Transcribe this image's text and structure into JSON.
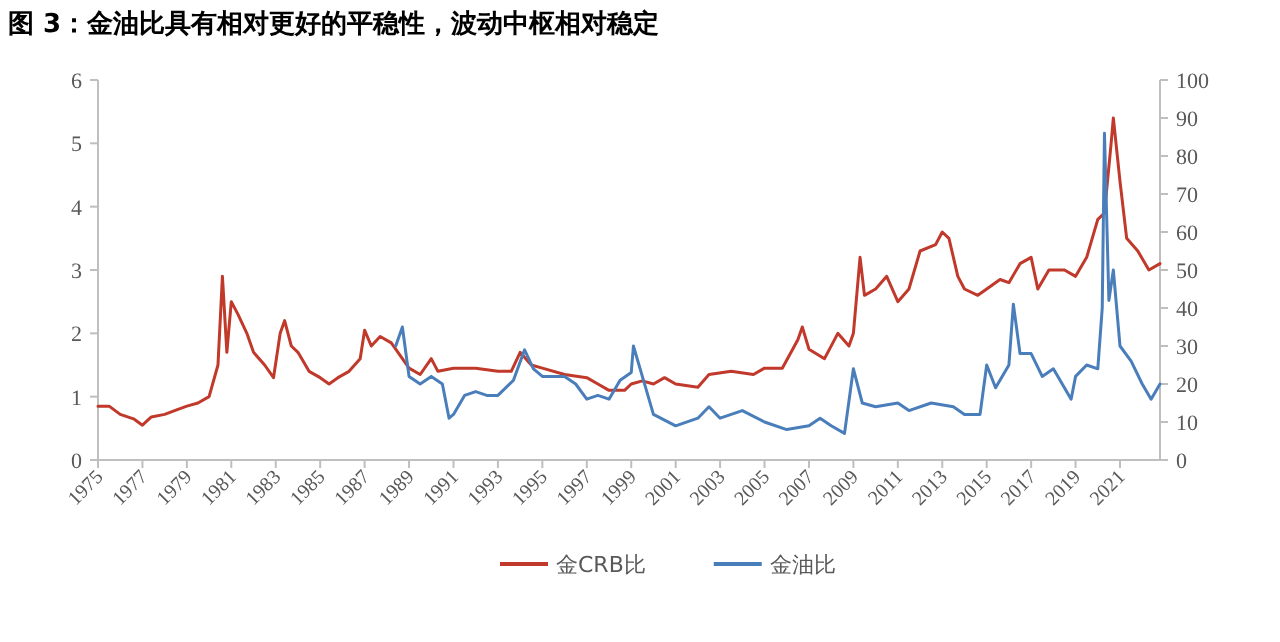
{
  "chart_data": {
    "type": "line",
    "title": "图 3：金油比具有相对更好的平稳性，波动中枢相对稳定",
    "legend": "bottom",
    "grid": false,
    "marker": "none",
    "line_style": "solid",
    "xlim": [
      1975,
      2022.8
    ],
    "xticks": [
      1975,
      1977,
      1979,
      1981,
      1983,
      1985,
      1987,
      1989,
      1991,
      1993,
      1995,
      1997,
      1999,
      2001,
      2003,
      2005,
      2007,
      2009,
      2011,
      2013,
      2015,
      2017,
      2019,
      2021
    ],
    "ylim": [
      0,
      6
    ],
    "yticks": [
      0,
      1,
      2,
      3,
      4,
      5,
      6
    ],
    "y2lim": [
      0,
      100
    ],
    "y2ticks": [
      0,
      10,
      20,
      30,
      40,
      50,
      60,
      70,
      80,
      90,
      100
    ],
    "series": [
      {
        "name": "金CRB比",
        "color": "#c0392b",
        "x": [
          1975.0,
          1975.5,
          1976.0,
          1976.6,
          1977.0,
          1977.4,
          1978.0,
          1978.6,
          1979.0,
          1979.5,
          1980.0,
          1980.4,
          1980.6,
          1980.8,
          1981.0,
          1981.3,
          1981.7,
          1982.0,
          1982.5,
          1982.9,
          1983.2,
          1983.4,
          1983.7,
          1984.0,
          1984.5,
          1985.0,
          1985.4,
          1985.8,
          1986.3,
          1986.8,
          1987.0,
          1987.3,
          1987.7,
          1988.2,
          1988.7,
          1989.0,
          1989.5,
          1990.0,
          1990.3,
          1991.0,
          1992.0,
          1993.0,
          1993.6,
          1994.0,
          1994.5,
          1995.0,
          1996.0,
          1997.0,
          1997.5,
          1998.0,
          1998.7,
          1999.0,
          1999.5,
          2000.0,
          2000.5,
          2001.0,
          2002.0,
          2002.5,
          2003.5,
          2004.5,
          2005.0,
          2005.8,
          2006.5,
          2006.7,
          2007.0,
          2007.7,
          2008.3,
          2008.8,
          2009.0,
          2009.3,
          2009.5,
          2010.0,
          2010.5,
          2011.0,
          2011.5,
          2012.0,
          2012.7,
          2013.0,
          2013.3,
          2013.7,
          2014.0,
          2014.6,
          2015.0,
          2015.6,
          2016.0,
          2016.5,
          2017.0,
          2017.3,
          2017.8,
          2018.5,
          2019.0,
          2019.5,
          2020.0,
          2020.3,
          2020.6,
          2020.7,
          2021.0,
          2021.3,
          2021.8,
          2022.3,
          2022.8
        ],
        "values": [
          0.85,
          0.85,
          0.72,
          0.65,
          0.55,
          0.68,
          0.72,
          0.8,
          0.85,
          0.9,
          1.0,
          1.5,
          2.9,
          1.7,
          2.5,
          2.3,
          2.0,
          1.7,
          1.5,
          1.3,
          2.0,
          2.2,
          1.8,
          1.7,
          1.4,
          1.3,
          1.2,
          1.3,
          1.4,
          1.6,
          2.05,
          1.8,
          1.95,
          1.85,
          1.6,
          1.45,
          1.35,
          1.6,
          1.4,
          1.45,
          1.45,
          1.4,
          1.4,
          1.7,
          1.5,
          1.45,
          1.35,
          1.3,
          1.2,
          1.1,
          1.1,
          1.2,
          1.25,
          1.2,
          1.3,
          1.2,
          1.15,
          1.35,
          1.4,
          1.35,
          1.45,
          1.45,
          1.9,
          2.1,
          1.75,
          1.6,
          2.0,
          1.8,
          2.0,
          3.2,
          2.6,
          2.7,
          2.9,
          2.5,
          2.7,
          3.3,
          3.4,
          3.6,
          3.5,
          2.9,
          2.7,
          2.6,
          2.7,
          2.85,
          2.8,
          3.1,
          3.2,
          2.7,
          3.0,
          3.0,
          2.9,
          3.2,
          3.8,
          3.9,
          5.0,
          5.4,
          4.4,
          3.5,
          3.3,
          3.0,
          3.1
        ]
      },
      {
        "name": "金油比",
        "color": "#4a7ebb",
        "axis": "y2",
        "x": [
          1988.4,
          1988.7,
          1989.0,
          1989.5,
          1990.0,
          1990.5,
          1990.8,
          1991.0,
          1991.5,
          1992.0,
          1992.5,
          1993.0,
          1993.7,
          1994.2,
          1994.6,
          1995.0,
          1996.0,
          1996.5,
          1997.0,
          1997.5,
          1998.0,
          1998.5,
          1999.0,
          1999.1,
          1999.5,
          2000.0,
          2001.0,
          2002.0,
          2002.5,
          2003.0,
          2004.0,
          2005.0,
          2006.0,
          2007.0,
          2007.5,
          2008.0,
          2008.6,
          2009.0,
          2009.4,
          2010.0,
          2011.0,
          2011.5,
          2012.5,
          2013.5,
          2014.0,
          2014.7,
          2015.0,
          2015.4,
          2016.0,
          2016.2,
          2016.5,
          2017.0,
          2017.5,
          2018.0,
          2018.8,
          2019.0,
          2019.5,
          2020.0,
          2020.2,
          2020.3,
          2020.5,
          2020.7,
          2021.0,
          2021.5,
          2022.0,
          2022.4,
          2022.8
        ],
        "values": [
          30,
          35,
          22,
          20,
          22,
          20,
          11,
          12,
          17,
          18,
          17,
          17,
          21,
          29,
          24,
          22,
          22,
          20,
          16,
          17,
          16,
          21,
          23,
          30,
          22,
          12,
          9,
          11,
          14,
          11,
          13,
          10,
          8,
          9,
          11,
          9,
          7,
          24,
          15,
          14,
          15,
          13,
          15,
          14,
          12,
          12,
          25,
          19,
          25,
          41,
          28,
          28,
          22,
          24,
          16,
          22,
          25,
          24,
          40,
          86,
          42,
          50,
          30,
          26,
          20,
          16,
          20
        ]
      }
    ]
  }
}
